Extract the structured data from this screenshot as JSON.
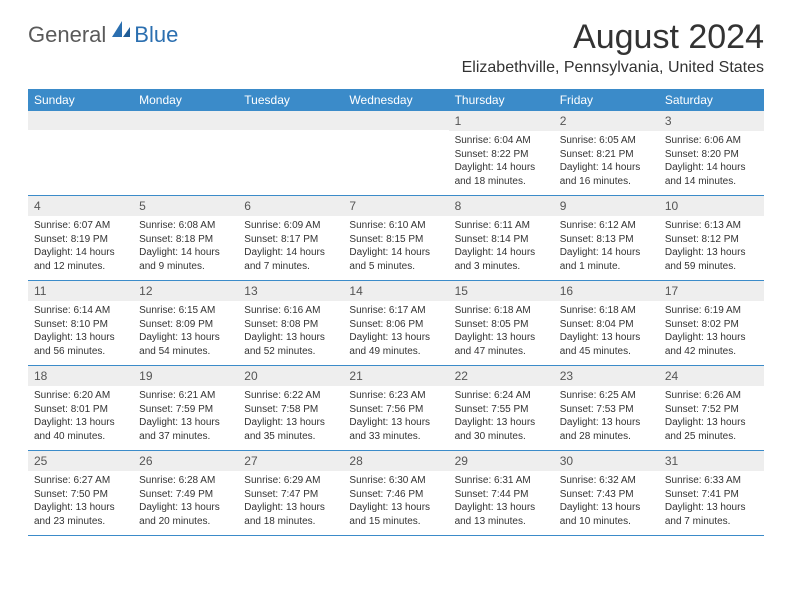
{
  "brand": {
    "general": "General",
    "blue": "Blue"
  },
  "title": "August 2024",
  "location": "Elizabethville, Pennsylvania, United States",
  "colors": {
    "header_bg": "#3b8bc9",
    "header_text": "#ffffff",
    "daynum_bg": "#eeeeee",
    "body_text": "#333333",
    "row_border": "#3b8bc9"
  },
  "weekdays": [
    "Sunday",
    "Monday",
    "Tuesday",
    "Wednesday",
    "Thursday",
    "Friday",
    "Saturday"
  ],
  "weeks": [
    [
      {
        "n": "",
        "sr": "",
        "ss": "",
        "dl": ""
      },
      {
        "n": "",
        "sr": "",
        "ss": "",
        "dl": ""
      },
      {
        "n": "",
        "sr": "",
        "ss": "",
        "dl": ""
      },
      {
        "n": "",
        "sr": "",
        "ss": "",
        "dl": ""
      },
      {
        "n": "1",
        "sr": "Sunrise: 6:04 AM",
        "ss": "Sunset: 8:22 PM",
        "dl": "Daylight: 14 hours and 18 minutes."
      },
      {
        "n": "2",
        "sr": "Sunrise: 6:05 AM",
        "ss": "Sunset: 8:21 PM",
        "dl": "Daylight: 14 hours and 16 minutes."
      },
      {
        "n": "3",
        "sr": "Sunrise: 6:06 AM",
        "ss": "Sunset: 8:20 PM",
        "dl": "Daylight: 14 hours and 14 minutes."
      }
    ],
    [
      {
        "n": "4",
        "sr": "Sunrise: 6:07 AM",
        "ss": "Sunset: 8:19 PM",
        "dl": "Daylight: 14 hours and 12 minutes."
      },
      {
        "n": "5",
        "sr": "Sunrise: 6:08 AM",
        "ss": "Sunset: 8:18 PM",
        "dl": "Daylight: 14 hours and 9 minutes."
      },
      {
        "n": "6",
        "sr": "Sunrise: 6:09 AM",
        "ss": "Sunset: 8:17 PM",
        "dl": "Daylight: 14 hours and 7 minutes."
      },
      {
        "n": "7",
        "sr": "Sunrise: 6:10 AM",
        "ss": "Sunset: 8:15 PM",
        "dl": "Daylight: 14 hours and 5 minutes."
      },
      {
        "n": "8",
        "sr": "Sunrise: 6:11 AM",
        "ss": "Sunset: 8:14 PM",
        "dl": "Daylight: 14 hours and 3 minutes."
      },
      {
        "n": "9",
        "sr": "Sunrise: 6:12 AM",
        "ss": "Sunset: 8:13 PM",
        "dl": "Daylight: 14 hours and 1 minute."
      },
      {
        "n": "10",
        "sr": "Sunrise: 6:13 AM",
        "ss": "Sunset: 8:12 PM",
        "dl": "Daylight: 13 hours and 59 minutes."
      }
    ],
    [
      {
        "n": "11",
        "sr": "Sunrise: 6:14 AM",
        "ss": "Sunset: 8:10 PM",
        "dl": "Daylight: 13 hours and 56 minutes."
      },
      {
        "n": "12",
        "sr": "Sunrise: 6:15 AM",
        "ss": "Sunset: 8:09 PM",
        "dl": "Daylight: 13 hours and 54 minutes."
      },
      {
        "n": "13",
        "sr": "Sunrise: 6:16 AM",
        "ss": "Sunset: 8:08 PM",
        "dl": "Daylight: 13 hours and 52 minutes."
      },
      {
        "n": "14",
        "sr": "Sunrise: 6:17 AM",
        "ss": "Sunset: 8:06 PM",
        "dl": "Daylight: 13 hours and 49 minutes."
      },
      {
        "n": "15",
        "sr": "Sunrise: 6:18 AM",
        "ss": "Sunset: 8:05 PM",
        "dl": "Daylight: 13 hours and 47 minutes."
      },
      {
        "n": "16",
        "sr": "Sunrise: 6:18 AM",
        "ss": "Sunset: 8:04 PM",
        "dl": "Daylight: 13 hours and 45 minutes."
      },
      {
        "n": "17",
        "sr": "Sunrise: 6:19 AM",
        "ss": "Sunset: 8:02 PM",
        "dl": "Daylight: 13 hours and 42 minutes."
      }
    ],
    [
      {
        "n": "18",
        "sr": "Sunrise: 6:20 AM",
        "ss": "Sunset: 8:01 PM",
        "dl": "Daylight: 13 hours and 40 minutes."
      },
      {
        "n": "19",
        "sr": "Sunrise: 6:21 AM",
        "ss": "Sunset: 7:59 PM",
        "dl": "Daylight: 13 hours and 37 minutes."
      },
      {
        "n": "20",
        "sr": "Sunrise: 6:22 AM",
        "ss": "Sunset: 7:58 PM",
        "dl": "Daylight: 13 hours and 35 minutes."
      },
      {
        "n": "21",
        "sr": "Sunrise: 6:23 AM",
        "ss": "Sunset: 7:56 PM",
        "dl": "Daylight: 13 hours and 33 minutes."
      },
      {
        "n": "22",
        "sr": "Sunrise: 6:24 AM",
        "ss": "Sunset: 7:55 PM",
        "dl": "Daylight: 13 hours and 30 minutes."
      },
      {
        "n": "23",
        "sr": "Sunrise: 6:25 AM",
        "ss": "Sunset: 7:53 PM",
        "dl": "Daylight: 13 hours and 28 minutes."
      },
      {
        "n": "24",
        "sr": "Sunrise: 6:26 AM",
        "ss": "Sunset: 7:52 PM",
        "dl": "Daylight: 13 hours and 25 minutes."
      }
    ],
    [
      {
        "n": "25",
        "sr": "Sunrise: 6:27 AM",
        "ss": "Sunset: 7:50 PM",
        "dl": "Daylight: 13 hours and 23 minutes."
      },
      {
        "n": "26",
        "sr": "Sunrise: 6:28 AM",
        "ss": "Sunset: 7:49 PM",
        "dl": "Daylight: 13 hours and 20 minutes."
      },
      {
        "n": "27",
        "sr": "Sunrise: 6:29 AM",
        "ss": "Sunset: 7:47 PM",
        "dl": "Daylight: 13 hours and 18 minutes."
      },
      {
        "n": "28",
        "sr": "Sunrise: 6:30 AM",
        "ss": "Sunset: 7:46 PM",
        "dl": "Daylight: 13 hours and 15 minutes."
      },
      {
        "n": "29",
        "sr": "Sunrise: 6:31 AM",
        "ss": "Sunset: 7:44 PM",
        "dl": "Daylight: 13 hours and 13 minutes."
      },
      {
        "n": "30",
        "sr": "Sunrise: 6:32 AM",
        "ss": "Sunset: 7:43 PM",
        "dl": "Daylight: 13 hours and 10 minutes."
      },
      {
        "n": "31",
        "sr": "Sunrise: 6:33 AM",
        "ss": "Sunset: 7:41 PM",
        "dl": "Daylight: 13 hours and 7 minutes."
      }
    ]
  ]
}
